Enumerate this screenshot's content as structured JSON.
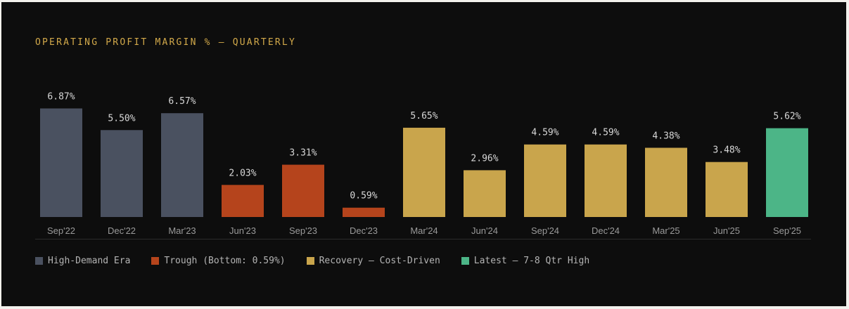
{
  "chart_data": {
    "type": "bar",
    "title": "OPERATING PROFIT MARGIN % — QUARTERLY",
    "xlabel": "",
    "ylabel": "",
    "ylim": [
      0,
      7
    ],
    "grid": false,
    "legend_placement": "bottom-left",
    "categories": [
      "Sep'22",
      "Dec'22",
      "Mar'23",
      "Jun'23",
      "Sep'23",
      "Dec'23",
      "Mar'24",
      "Jun'24",
      "Sep'24",
      "Dec'24",
      "Mar'25",
      "Jun'25",
      "Sep'25"
    ],
    "values": [
      6.87,
      5.5,
      6.57,
      2.03,
      3.31,
      0.59,
      5.65,
      2.96,
      4.59,
      4.59,
      4.38,
      3.48,
      5.62
    ],
    "data_labels": [
      "6.87%",
      "5.50%",
      "6.57%",
      "2.03%",
      "3.31%",
      "0.59%",
      "5.65%",
      "2.96%",
      "4.59%",
      "4.59%",
      "4.38%",
      "3.48%",
      "5.62%"
    ],
    "bar_groups": [
      0,
      0,
      0,
      1,
      1,
      1,
      2,
      2,
      2,
      2,
      2,
      2,
      3
    ],
    "groups": [
      {
        "name": "High-Demand Era",
        "color": "#4a5160"
      },
      {
        "name": "Trough (Bottom: 0.59%)",
        "color": "#b5441c"
      },
      {
        "name": "Recovery — Cost-Driven",
        "color": "#c9a54c"
      },
      {
        "name": "Latest — 7-8 Qtr High",
        "color": "#4cb587"
      }
    ]
  }
}
